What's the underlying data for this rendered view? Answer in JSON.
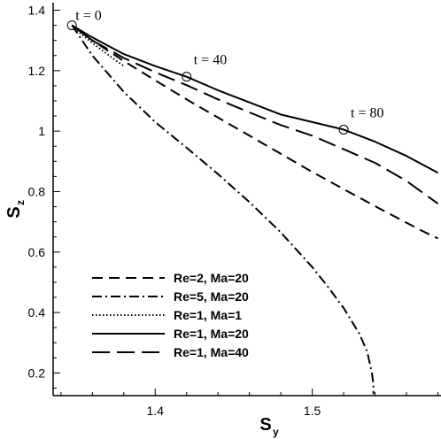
{
  "chart_data": {
    "type": "line",
    "xlabel": "S",
    "xlabel_sub": "y",
    "ylabel": "S",
    "ylabel_sub": "z",
    "xlim": [
      1.335,
      1.582
    ],
    "ylim": [
      0.125,
      1.425
    ],
    "xticks": [
      1.4,
      1.5
    ],
    "xtick_labels": [
      "1.4",
      "1.5"
    ],
    "yticks": [
      0.2,
      0.4,
      0.6,
      0.8,
      1.0,
      1.2,
      1.4
    ],
    "ytick_labels": [
      "0.2",
      "0.4",
      "0.6",
      "0.8",
      "1",
      "1.2",
      "1.4"
    ],
    "grid": false,
    "legend_position": "bottom-left",
    "series": [
      {
        "name": "Re=2, Ma=20",
        "dash": "medium-dash",
        "x": [
          1.347,
          1.36,
          1.38,
          1.4,
          1.42,
          1.44,
          1.46,
          1.48,
          1.5,
          1.52,
          1.54,
          1.56,
          1.57,
          1.58
        ],
        "y": [
          1.35,
          1.3,
          1.232,
          1.168,
          1.105,
          1.045,
          0.985,
          0.925,
          0.865,
          0.808,
          0.752,
          0.697,
          0.67,
          0.645
        ]
      },
      {
        "name": "Re=5, Ma=20",
        "dash": "dash-dot",
        "x": [
          1.347,
          1.36,
          1.38,
          1.4,
          1.42,
          1.44,
          1.46,
          1.48,
          1.5,
          1.51,
          1.52,
          1.53,
          1.535,
          1.538,
          1.539,
          1.539
        ],
        "y": [
          1.35,
          1.25,
          1.13,
          1.03,
          0.945,
          0.858,
          0.765,
          0.665,
          0.55,
          0.485,
          0.415,
          0.33,
          0.27,
          0.2,
          0.16,
          0.13
        ]
      },
      {
        "name": "Re=1, Ma=1",
        "dash": "dotted",
        "x": [
          1.347,
          1.352,
          1.358,
          1.365,
          1.372,
          1.38
        ],
        "y": [
          1.35,
          1.325,
          1.3,
          1.272,
          1.245,
          1.215
        ]
      },
      {
        "name": "Re=1, Ma=20",
        "dash": "solid",
        "x": [
          1.347,
          1.36,
          1.38,
          1.4,
          1.42,
          1.44,
          1.46,
          1.48,
          1.5,
          1.52,
          1.54,
          1.56,
          1.58
        ],
        "y": [
          1.35,
          1.31,
          1.255,
          1.215,
          1.18,
          1.135,
          1.095,
          1.055,
          1.03,
          1.005,
          0.965,
          0.918,
          0.862
        ]
      },
      {
        "name": "Re=1, Ma=40",
        "dash": "long-dash",
        "x": [
          1.347,
          1.36,
          1.38,
          1.4,
          1.42,
          1.44,
          1.46,
          1.48,
          1.5,
          1.52,
          1.54,
          1.56,
          1.58
        ],
        "y": [
          1.35,
          1.3,
          1.242,
          1.195,
          1.152,
          1.105,
          1.062,
          1.02,
          0.985,
          0.94,
          0.895,
          0.835,
          0.76
        ]
      }
    ],
    "markers": [
      {
        "x": 1.347,
        "y": 1.35,
        "label": "t = 0"
      },
      {
        "x": 1.42,
        "y": 1.18,
        "label": "t = 40"
      },
      {
        "x": 1.52,
        "y": 1.005,
        "label": "t = 80"
      }
    ]
  }
}
